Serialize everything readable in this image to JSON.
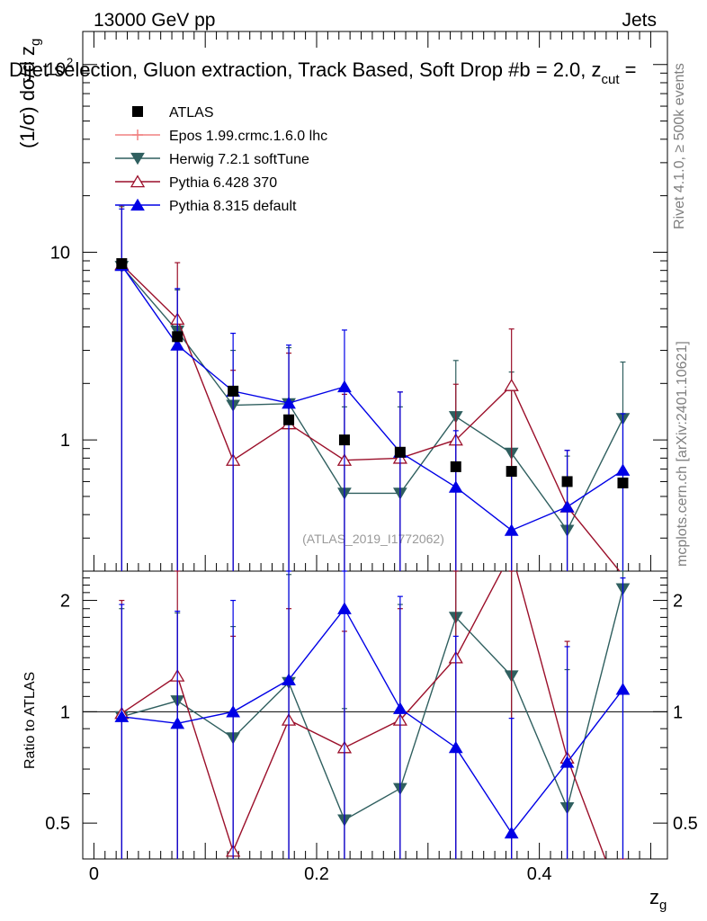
{
  "header": {
    "left": "13000 GeV pp",
    "right": "Jets",
    "plot_title": "Dijet selection, Gluon extraction, Track Based, Soft Drop #b = 2.0, z",
    "plot_title_sub": "cut",
    "plot_title_tail": " ="
  },
  "side_labels": {
    "rivet": "Rivet 4.1.0, ≥ 500k events",
    "mcplots": "mcplots.cern.ch [arXiv:2401.10621]"
  },
  "watermark": "(ATLAS_2019_I1772062)",
  "axes": {
    "ylabel_main": "(1/σ) dσ/d z",
    "ylabel_main_sub": "g",
    "ylabel_ratio": "Ratio to ATLAS",
    "xlabel": "z",
    "xlabel_sub": "g",
    "main_ytick_labels": [
      {
        "value": 100,
        "base": "10",
        "exp": "2"
      },
      {
        "value": 10,
        "label": "10"
      },
      {
        "value": 1,
        "label": "1"
      }
    ],
    "ratio_ytick_labels": [
      {
        "value": 2,
        "label": "2"
      },
      {
        "value": 1,
        "label": "1"
      },
      {
        "value": 0.5,
        "label": "0.5"
      }
    ],
    "xtick_labels": [
      {
        "value": 0,
        "label": "0"
      },
      {
        "value": 0.2,
        "label": "0.2"
      },
      {
        "value": 0.4,
        "label": "0.4"
      }
    ]
  },
  "chart_data": {
    "type": "scatter",
    "title": "Dijet selection, Gluon extraction, Track Based, Soft Drop beta = 2.0, z_cut =",
    "xlabel": "z_g",
    "ylabel": "(1/sigma) dsigma/d z_g",
    "ratio_ylabel": "Ratio to ATLAS",
    "xlim": [
      -0.01,
      0.515
    ],
    "ylim": [
      0.2,
      150
    ],
    "yscale": "log",
    "ratio_ylim": [
      0.4,
      2.4
    ],
    "ratio_yscale": "log",
    "legend_position": "top-left",
    "x": [
      0.025,
      0.075,
      0.125,
      0.175,
      0.225,
      0.275,
      0.325,
      0.375,
      0.425,
      0.475
    ],
    "data": {
      "name": "ATLAS",
      "color": "#000000",
      "marker": "square",
      "values": [
        8.7,
        3.55,
        1.82,
        1.28,
        1.0,
        0.86,
        0.72,
        0.68,
        0.6,
        0.59
      ]
    },
    "series": [
      {
        "name": "Epos 1.99.crmc.1.6.0 lhc",
        "color": "#f08080",
        "marker": "none",
        "values": [],
        "err_up": [],
        "err_dn": [],
        "ratio": []
      },
      {
        "name": "Herwig 7.2.1 softTune",
        "color": "#2f5f5f",
        "marker": "triangle-down",
        "values": [
          8.4,
          3.8,
          1.53,
          1.56,
          0.52,
          0.52,
          1.33,
          0.85,
          0.33,
          1.3
        ],
        "err_up": [
          17.5,
          6.3,
          3.0,
          3.1,
          1.5,
          1.5,
          2.65,
          2.3,
          0.82,
          2.6
        ],
        "err_dn": [
          0.2,
          0.2,
          0.2,
          0.2,
          0.2,
          0.2,
          0.2,
          0.2,
          0.2,
          0.2
        ],
        "ratio": [
          0.97,
          1.07,
          0.85,
          1.2,
          0.51,
          0.62,
          1.8,
          1.25,
          0.55,
          2.15
        ],
        "ratio_err_up": [
          1.9,
          1.85,
          1.7,
          2.35,
          1.02,
          1.95,
          2.4,
          2.4,
          1.3,
          2.4
        ],
        "ratio_err_dn": [
          0.4,
          0.4,
          0.4,
          0.4,
          0.4,
          0.4,
          0.4,
          0.4,
          0.4,
          0.4
        ]
      },
      {
        "name": "Pythia 6.428 370",
        "color": "#9b0f2a",
        "marker": "triangle-open",
        "values": [
          8.6,
          4.4,
          0.78,
          1.22,
          0.78,
          0.8,
          1.0,
          1.95,
          0.44,
          0.19
        ],
        "err_up": [
          17.8,
          8.8,
          2.35,
          2.9,
          1.75,
          1.8,
          1.98,
          3.9,
          0.88,
          0.19
        ],
        "err_dn": [
          0.2,
          0.2,
          0.2,
          0.2,
          0.2,
          0.2,
          0.2,
          0.2,
          0.2,
          0.2
        ],
        "ratio": [
          0.99,
          1.25,
          0.42,
          0.95,
          0.8,
          0.95,
          1.4,
          2.7,
          0.75,
          0.3
        ],
        "ratio_err_up": [
          2.0,
          2.4,
          1.6,
          1.9,
          1.65,
          1.9,
          2.4,
          2.4,
          1.55,
          0.3
        ],
        "ratio_err_dn": [
          0.4,
          0.4,
          0.4,
          0.4,
          0.4,
          0.4,
          0.4,
          0.4,
          0.4,
          0.4
        ]
      },
      {
        "name": "Pythia 8.315 default",
        "color": "#0000e6",
        "marker": "triangle-up",
        "values": [
          8.5,
          3.2,
          1.82,
          1.57,
          1.92,
          0.86,
          0.56,
          0.33,
          0.44,
          0.69
        ],
        "err_up": [
          17.0,
          6.4,
          3.7,
          3.2,
          3.85,
          1.8,
          1.12,
          0.7,
          0.88,
          1.38
        ],
        "err_dn": [
          0.2,
          0.2,
          0.2,
          0.2,
          0.2,
          0.2,
          0.2,
          0.2,
          0.2,
          0.2
        ],
        "ratio": [
          0.97,
          0.93,
          1.0,
          1.22,
          1.9,
          1.02,
          0.8,
          0.47,
          0.73,
          1.15
        ],
        "ratio_err_up": [
          1.95,
          1.87,
          2.0,
          2.45,
          2.4,
          2.05,
          1.6,
          0.96,
          1.5,
          2.3
        ],
        "ratio_err_dn": [
          0.4,
          0.4,
          0.4,
          0.4,
          0.4,
          0.4,
          0.4,
          0.4,
          0.4,
          0.4
        ]
      }
    ]
  }
}
